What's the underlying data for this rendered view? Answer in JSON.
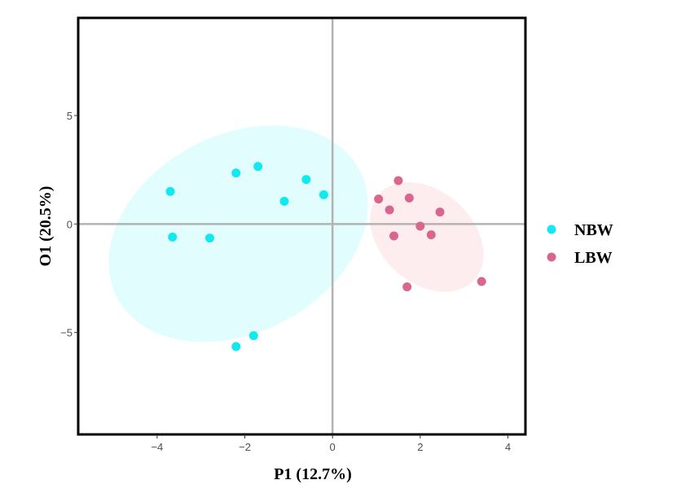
{
  "chart_data": {
    "type": "scatter",
    "xlabel": "P1 (12.7%)",
    "ylabel": "O1 (20.5%)",
    "xlim": [
      -5.8,
      4.4
    ],
    "ylim": [
      -9.7,
      9.5
    ],
    "xticks": [
      -4,
      -2,
      0,
      2,
      4
    ],
    "xtick_labels": [
      "−4",
      "−2",
      "0",
      "2",
      "4"
    ],
    "yticks": [
      -5,
      0,
      5
    ],
    "ytick_labels": [
      "−5",
      "0",
      "5"
    ],
    "grid": false,
    "reference_lines": {
      "x": 0,
      "y": 0
    },
    "legend_position": "right",
    "series": [
      {
        "name": "NBW",
        "color": "#12e8f0",
        "ellipse_color": "#c8fbfb",
        "points": [
          {
            "x": -3.7,
            "y": 1.5
          },
          {
            "x": -3.65,
            "y": -0.6
          },
          {
            "x": -2.8,
            "y": -0.65
          },
          {
            "x": -2.2,
            "y": 2.35
          },
          {
            "x": -1.7,
            "y": 2.65
          },
          {
            "x": -1.1,
            "y": 1.05
          },
          {
            "x": -0.6,
            "y": 2.05
          },
          {
            "x": -0.2,
            "y": 1.35
          },
          {
            "x": -2.2,
            "y": -5.65
          },
          {
            "x": -1.8,
            "y": -5.15
          }
        ],
        "ellipse": {
          "cx": -2.15,
          "cy": -0.45,
          "rx": 6.25,
          "ry": 9.1,
          "angle_deg": -28
        }
      },
      {
        "name": "LBW",
        "color": "#d9668f",
        "ellipse_color": "#fbdfe0",
        "points": [
          {
            "x": 1.05,
            "y": 1.15
          },
          {
            "x": 1.3,
            "y": 0.65
          },
          {
            "x": 1.5,
            "y": 2.0
          },
          {
            "x": 1.75,
            "y": 1.2
          },
          {
            "x": 2.0,
            "y": -0.1
          },
          {
            "x": 2.45,
            "y": 0.55
          },
          {
            "x": 1.4,
            "y": -0.55
          },
          {
            "x": 2.25,
            "y": -0.5
          },
          {
            "x": 1.7,
            "y": -2.9
          },
          {
            "x": 3.4,
            "y": -2.65
          }
        ],
        "ellipse": {
          "cx": 2.15,
          "cy": -0.6,
          "rx": 2.1,
          "ry": 5.9,
          "angle_deg": -48
        }
      }
    ]
  }
}
